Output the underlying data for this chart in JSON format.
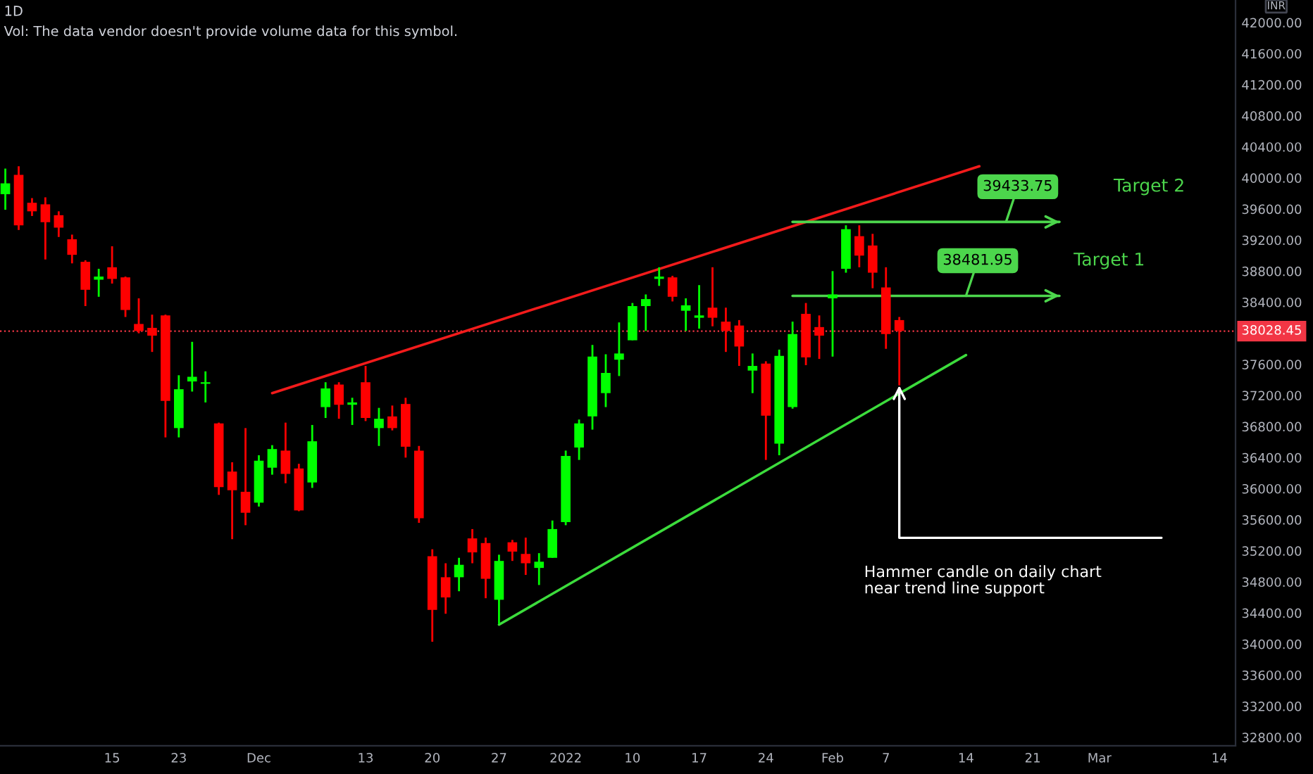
{
  "chart_data": {
    "type": "candlestick",
    "title": "1D",
    "ylabel": "INR",
    "annotations": [
      "Vol: The data vendor doesn't provide volume data for this symbol.",
      "Hammer candle on daily chart\nnear trend line support"
    ],
    "categories": [
      null,
      null,
      null,
      null,
      null,
      null,
      null,
      null,
      "15",
      null,
      null,
      null,
      null,
      "23",
      null,
      null,
      null,
      null,
      null,
      "Dec",
      null,
      null,
      null,
      null,
      null,
      null,
      null,
      "13",
      null,
      null,
      null,
      null,
      "20",
      null,
      null,
      null,
      null,
      "27",
      null,
      null,
      null,
      null,
      "2022",
      null,
      null,
      null,
      null,
      "10",
      null,
      null,
      null,
      null,
      "17",
      null,
      null,
      null,
      null,
      "24",
      null,
      null,
      null,
      null,
      "Feb",
      null,
      null,
      null,
      "7",
      null,
      null,
      null,
      null,
      null,
      "14",
      null,
      null,
      null,
      null,
      "21",
      null,
      null,
      null,
      null,
      "Mar",
      null,
      null,
      null,
      null,
      null,
      null,
      null,
      null,
      "14"
    ],
    "ohlc": [
      [
        39790,
        40120,
        39590,
        39930
      ],
      [
        40040,
        40150,
        39330,
        39390
      ],
      [
        39680,
        39740,
        39510,
        39570
      ],
      [
        39660,
        39750,
        38950,
        39430
      ],
      [
        39520,
        39570,
        39240,
        39360
      ],
      [
        39210,
        39270,
        38900,
        39010
      ],
      [
        38920,
        38940,
        38350,
        38560
      ],
      [
        38690,
        38830,
        38470,
        38730
      ],
      [
        38850,
        39120,
        38640,
        38700
      ],
      [
        38720,
        38730,
        38210,
        38300
      ],
      [
        38120,
        38450,
        38000,
        38030
      ],
      [
        38070,
        38240,
        37760,
        37970
      ],
      [
        38230,
        38240,
        36660,
        37130
      ],
      [
        36780,
        37460,
        36660,
        37280
      ],
      [
        37380,
        37890,
        37250,
        37440
      ],
      [
        37350,
        37510,
        37110,
        37370
      ],
      [
        36840,
        36850,
        35920,
        36020
      ],
      [
        36220,
        36340,
        35350,
        35980
      ],
      [
        35960,
        36780,
        35530,
        35690
      ],
      [
        35820,
        36430,
        35770,
        36360
      ],
      [
        36270,
        36560,
        36180,
        36510
      ],
      [
        36490,
        36850,
        36070,
        36190
      ],
      [
        36260,
        36320,
        35710,
        35720
      ],
      [
        36080,
        36820,
        36010,
        36610
      ],
      [
        37050,
        37370,
        36910,
        37290
      ],
      [
        37340,
        37370,
        36900,
        37080
      ],
      [
        37080,
        37170,
        36820,
        37110
      ],
      [
        37370,
        37580,
        36870,
        36910
      ],
      [
        36780,
        37040,
        36550,
        36900
      ],
      [
        36930,
        37070,
        36750,
        36780
      ],
      [
        37090,
        37170,
        36400,
        36540
      ],
      [
        36490,
        36550,
        35560,
        35620
      ],
      [
        35130,
        35220,
        34030,
        34440
      ],
      [
        34860,
        35040,
        34390,
        34600
      ],
      [
        34860,
        35110,
        34680,
        35020
      ],
      [
        35360,
        35480,
        35040,
        35180
      ],
      [
        35300,
        35370,
        34590,
        34840
      ],
      [
        34570,
        35150,
        34260,
        35070
      ],
      [
        35310,
        35340,
        35070,
        35190
      ],
      [
        35160,
        35370,
        34890,
        35040
      ],
      [
        34980,
        35170,
        34760,
        35060
      ],
      [
        35110,
        35590,
        35110,
        35480
      ],
      [
        35570,
        36490,
        35530,
        36420
      ],
      [
        36530,
        36890,
        36370,
        36840
      ],
      [
        36930,
        37850,
        36760,
        37700
      ],
      [
        37230,
        37730,
        37050,
        37490
      ],
      [
        37660,
        38140,
        37450,
        37740
      ],
      [
        37910,
        38390,
        37910,
        38350
      ],
      [
        38350,
        38500,
        38030,
        38440
      ],
      [
        38700,
        38850,
        38610,
        38730
      ],
      [
        38720,
        38740,
        38410,
        38470
      ],
      [
        38290,
        38450,
        38030,
        38360
      ],
      [
        38200,
        38620,
        38060,
        38230
      ],
      [
        38330,
        38850,
        38090,
        38200
      ],
      [
        38150,
        38330,
        37760,
        38030
      ],
      [
        38100,
        38170,
        37580,
        37830
      ],
      [
        37520,
        37740,
        37230,
        37580
      ],
      [
        37610,
        37640,
        36370,
        36940
      ],
      [
        36580,
        37790,
        36430,
        37710
      ],
      [
        37050,
        38150,
        37030,
        37990
      ],
      [
        38250,
        38390,
        37590,
        37690
      ],
      [
        38080,
        38230,
        37670,
        37970
      ],
      [
        38450,
        38800,
        37700,
        38500
      ],
      [
        38830,
        39390,
        38780,
        39340
      ],
      [
        39250,
        39390,
        38850,
        39000
      ],
      [
        39130,
        39280,
        38580,
        38780
      ],
      [
        38590,
        38850,
        37800,
        37990
      ],
      [
        38170,
        38210,
        37330,
        38030
      ],
      null,
      null,
      null,
      null,
      null,
      null,
      null,
      null,
      null,
      null,
      null,
      null,
      null,
      null,
      null,
      null,
      null,
      null,
      null,
      null,
      null,
      null,
      null,
      null
    ],
    "colors": [
      "#00ff00",
      "#ff0000",
      "#ff0000",
      "#ff0000",
      "#ff0000",
      "#ff0000",
      "#ff0000",
      "#00ff00",
      "#ff0000",
      "#ff0000",
      "#ff0000",
      "#ff0000",
      "#ff0000",
      "#00ff00",
      "#00ff00",
      "#00ff00",
      "#ff0000",
      "#ff0000",
      "#ff0000",
      "#00ff00",
      "#00ff00",
      "#ff0000",
      "#ff0000",
      "#00ff00",
      "#00ff00",
      "#ff0000",
      "#00ff00",
      "#ff0000",
      "#00ff00",
      "#ff0000",
      "#ff0000",
      "#ff0000",
      "#ff0000",
      "#ff0000",
      "#00ff00",
      "#ff0000",
      "#ff0000",
      "#00ff00",
      "#ff0000",
      "#ff0000",
      "#00ff00",
      "#00ff00",
      "#00ff00",
      "#00ff00",
      "#00ff00",
      "#00ff00",
      "#00ff00",
      "#00ff00",
      "#00ff00",
      "#00ff00",
      "#ff0000",
      "#00ff00",
      "#00ff00",
      "#ff0000",
      "#ff0000",
      "#ff0000",
      "#00ff00",
      "#ff0000",
      "#00ff00",
      "#00ff00",
      "#ff0000",
      "#ff0000",
      "#00ff00",
      "#00ff00",
      "#ff0000",
      "#ff0000",
      "#ff0000",
      "#ff0000",
      null,
      null,
      null,
      null,
      null,
      null,
      null,
      null,
      null,
      null,
      null,
      null,
      null,
      null,
      null,
      null,
      null,
      null,
      null,
      null,
      null,
      null,
      null,
      null
    ],
    "series": [
      {
        "type": "line",
        "color": "#f21b1b",
        "values": [
          null,
          null,
          null,
          null,
          null,
          null,
          null,
          null,
          null,
          null,
          null,
          null,
          null,
          null,
          null,
          null,
          null,
          null,
          null,
          null,
          37230,
          null,
          null,
          null,
          null,
          null,
          null,
          null,
          null,
          null,
          null,
          null,
          null,
          null,
          null,
          null,
          null,
          null,
          null,
          null,
          null,
          null,
          null,
          null,
          null,
          null,
          null,
          null,
          null,
          null,
          null,
          null,
          null,
          null,
          null,
          null,
          null,
          null,
          null,
          null,
          null,
          null,
          null,
          null,
          null,
          null,
          null,
          null,
          null,
          null,
          null,
          null,
          null,
          40150,
          null,
          null,
          null,
          null,
          null,
          null,
          null,
          null,
          null,
          null,
          null,
          null,
          null,
          null,
          null,
          null,
          null,
          null
        ]
      },
      {
        "type": "line",
        "color": "#3cdc3c",
        "values": [
          null,
          null,
          null,
          null,
          null,
          null,
          null,
          null,
          null,
          null,
          null,
          null,
          null,
          null,
          null,
          null,
          null,
          null,
          null,
          null,
          null,
          null,
          null,
          null,
          null,
          null,
          null,
          null,
          null,
          null,
          null,
          null,
          null,
          null,
          null,
          null,
          null,
          34250,
          null,
          null,
          null,
          null,
          null,
          null,
          null,
          null,
          null,
          null,
          null,
          null,
          null,
          null,
          null,
          null,
          null,
          null,
          null,
          null,
          null,
          null,
          null,
          null,
          null,
          null,
          null,
          null,
          null,
          null,
          null,
          null,
          null,
          null,
          37720,
          null,
          null,
          null,
          null,
          null,
          null,
          null,
          null,
          null,
          null,
          null,
          null,
          null,
          null,
          null,
          null,
          null,
          null,
          null
        ]
      },
      {
        "type": "line",
        "name": "Target 2",
        "color": "#4cd64c",
        "values": [
          null,
          null,
          null,
          null,
          null,
          null,
          null,
          null,
          null,
          null,
          null,
          null,
          null,
          null,
          null,
          null,
          null,
          null,
          null,
          null,
          null,
          null,
          null,
          null,
          null,
          null,
          null,
          null,
          null,
          null,
          null,
          null,
          null,
          null,
          null,
          null,
          null,
          null,
          null,
          null,
          null,
          null,
          null,
          null,
          null,
          null,
          null,
          null,
          null,
          null,
          null,
          null,
          null,
          null,
          null,
          null,
          null,
          null,
          null,
          39433.75,
          null,
          null,
          null,
          null,
          null,
          null,
          null,
          null,
          null,
          null,
          null,
          null,
          null,
          null,
          null,
          null,
          null,
          null,
          null,
          39433.75,
          null,
          null,
          null,
          null,
          null,
          null,
          null,
          null,
          null,
          null,
          null,
          null
        ],
        "value_labels": [
          null,
          null,
          null,
          null,
          null,
          null,
          null,
          null,
          null,
          null,
          null,
          null,
          null,
          null,
          null,
          null,
          null,
          null,
          null,
          null,
          null,
          null,
          null,
          null,
          null,
          null,
          null,
          null,
          null,
          null,
          null,
          null,
          null,
          null,
          null,
          null,
          null,
          null,
          null,
          null,
          null,
          null,
          null,
          null,
          null,
          null,
          null,
          null,
          null,
          null,
          null,
          null,
          null,
          null,
          null,
          null,
          null,
          null,
          null,
          null,
          null,
          null,
          null,
          null,
          null,
          null,
          null,
          null,
          null,
          null,
          null,
          null,
          null,
          null,
          null,
          null,
          null,
          null,
          "39433.75",
          null,
          null,
          null,
          null,
          null,
          null,
          null,
          null,
          null,
          null,
          null,
          null,
          null
        ]
      },
      {
        "type": "line",
        "name": "Target 1",
        "color": "#4cd64c",
        "values": [
          null,
          null,
          null,
          null,
          null,
          null,
          null,
          null,
          null,
          null,
          null,
          null,
          null,
          null,
          null,
          null,
          null,
          null,
          null,
          null,
          null,
          null,
          null,
          null,
          null,
          null,
          null,
          null,
          null,
          null,
          null,
          null,
          null,
          null,
          null,
          null,
          null,
          null,
          null,
          null,
          null,
          null,
          null,
          null,
          null,
          null,
          null,
          null,
          null,
          null,
          null,
          null,
          null,
          null,
          null,
          null,
          null,
          null,
          null,
          38481.95,
          null,
          null,
          null,
          null,
          null,
          null,
          null,
          null,
          null,
          null,
          null,
          null,
          null,
          null,
          null,
          null,
          null,
          null,
          null,
          38481.95,
          null,
          null,
          null,
          null,
          null,
          null,
          null,
          null,
          null,
          null,
          null,
          null
        ],
        "value_labels": [
          null,
          null,
          null,
          null,
          null,
          null,
          null,
          null,
          null,
          null,
          null,
          null,
          null,
          null,
          null,
          null,
          null,
          null,
          null,
          null,
          null,
          null,
          null,
          null,
          null,
          null,
          null,
          null,
          null,
          null,
          null,
          null,
          null,
          null,
          null,
          null,
          null,
          null,
          null,
          null,
          null,
          null,
          null,
          null,
          null,
          null,
          null,
          null,
          null,
          null,
          null,
          null,
          null,
          null,
          null,
          null,
          null,
          null,
          null,
          null,
          null,
          null,
          null,
          null,
          null,
          null,
          null,
          null,
          null,
          null,
          null,
          null,
          null,
          null,
          null,
          "38481.95",
          null,
          null,
          null,
          null,
          null,
          null,
          null,
          null,
          null,
          null,
          null,
          null,
          null,
          null,
          null,
          null
        ]
      }
    ],
    "ylim": [
      32690,
      42290
    ],
    "yticks": [
      {
        "value": 32800,
        "label": "32800.00"
      },
      {
        "value": 33200,
        "label": "33200.00"
      },
      {
        "value": 33600,
        "label": "33600.00"
      },
      {
        "value": 34000,
        "label": "34000.00"
      },
      {
        "value": 34400,
        "label": "34400.00"
      },
      {
        "value": 34800,
        "label": "34800.00"
      },
      {
        "value": 35200,
        "label": "35200.00"
      },
      {
        "value": 35600,
        "label": "35600.00"
      },
      {
        "value": 36000,
        "label": "36000.00"
      },
      {
        "value": 36400,
        "label": "36400.00"
      },
      {
        "value": 36800,
        "label": "36800.00"
      },
      {
        "value": 37200,
        "label": "37200.00"
      },
      {
        "value": 37600,
        "label": "37600.00"
      },
      {
        "value": 38400,
        "label": "38400.00"
      },
      {
        "value": 38800,
        "label": "38800.00"
      },
      {
        "value": 39200,
        "label": "39200.00"
      },
      {
        "value": 39600,
        "label": "39600.00"
      },
      {
        "value": 40000,
        "label": "40000.00"
      },
      {
        "value": 40400,
        "label": "40400.00"
      },
      {
        "value": 40800,
        "label": "40800.00"
      },
      {
        "value": 41200,
        "label": "41200.00"
      },
      {
        "value": 41600,
        "label": "41600.00"
      },
      {
        "value": 42000,
        "label": "42000.00"
      }
    ],
    "ref_lines": [
      {
        "axis": "y",
        "value": 38028.45,
        "label": "38028.45",
        "color": "#f23645",
        "line_style": "dotted"
      }
    ]
  }
}
